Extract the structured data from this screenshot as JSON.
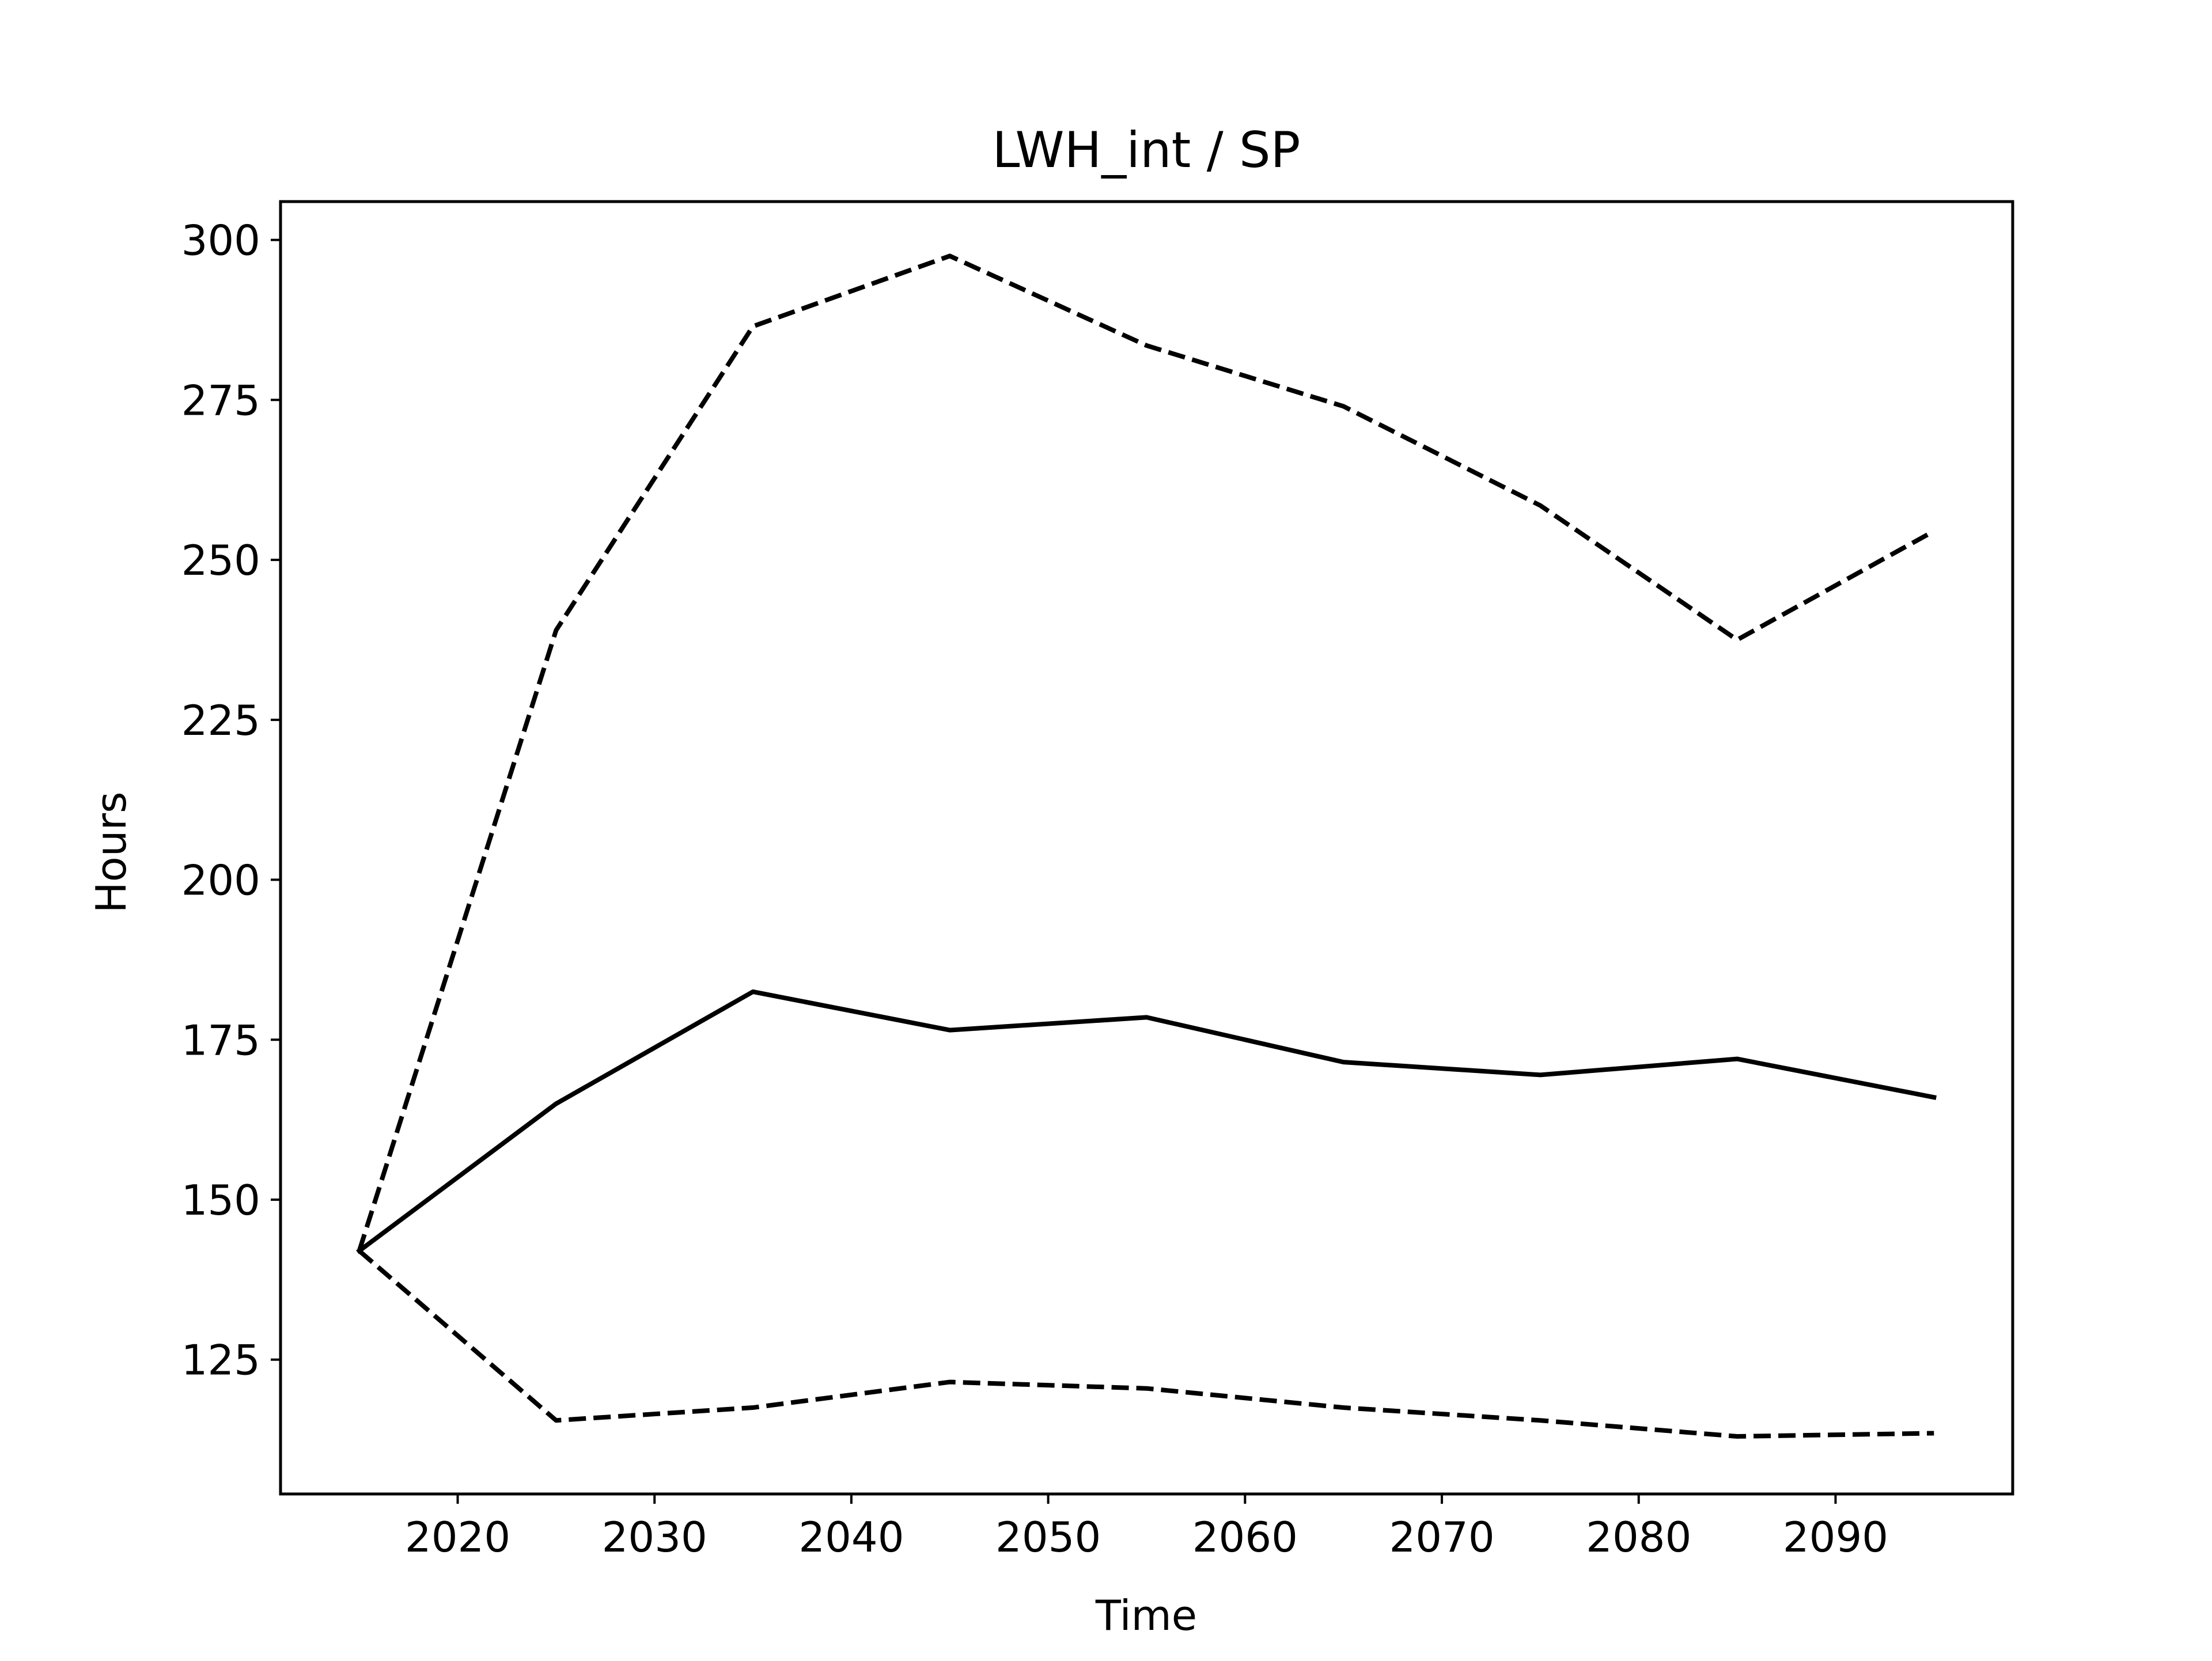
{
  "chart_data": {
    "type": "line",
    "title": "LWH_int / SP",
    "xlabel": "Time",
    "ylabel": "Hours",
    "xlim": [
      2011,
      2099
    ],
    "ylim": [
      104,
      306
    ],
    "xticks": [
      2020,
      2030,
      2040,
      2050,
      2060,
      2070,
      2080,
      2090
    ],
    "yticks": [
      125,
      150,
      175,
      200,
      225,
      250,
      275,
      300
    ],
    "grid": false,
    "legend": "none",
    "x": [
      2015,
      2025,
      2035,
      2045,
      2055,
      2065,
      2075,
      2085,
      2095
    ],
    "series": [
      {
        "style": "solid",
        "color": "#000000",
        "values": [
          142,
          165,
          182.5,
          176.5,
          178.5,
          171.5,
          169.5,
          172,
          166
        ]
      },
      {
        "style": "dashed",
        "color": "#000000",
        "values": [
          142,
          239,
          286.5,
          297.5,
          283.5,
          274,
          258.5,
          237.5,
          254.5
        ]
      },
      {
        "style": "dashed",
        "color": "#000000",
        "values": [
          142,
          115.5,
          117.5,
          121.5,
          120.5,
          117.5,
          115.5,
          113,
          113.5
        ]
      }
    ]
  }
}
